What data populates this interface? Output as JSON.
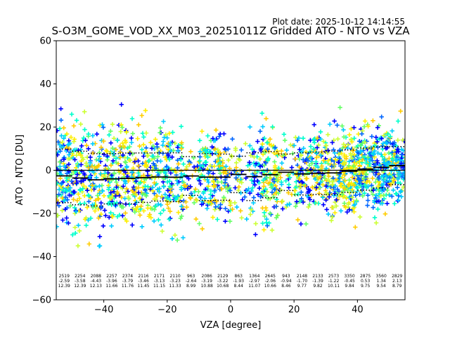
{
  "chart_data": {
    "type": "scatter",
    "title": "S-O3M_GOME_VOD_XX_M03_20251011Z Gridded ATO - NTO vs VZA",
    "plot_date": "Plot date: 2025-10-12 14:14:55",
    "xlabel": "VZA [degree]",
    "ylabel": "ATO - NTO [DU]",
    "xlim": [
      -55,
      55
    ],
    "ylim": [
      -60,
      60
    ],
    "xticks": [
      -40,
      -20,
      0,
      20,
      40
    ],
    "yticks": [
      -60,
      -40,
      -20,
      0,
      20,
      40,
      60
    ],
    "xtick_labels": [
      "−40",
      "−20",
      "0",
      "20",
      "40"
    ],
    "ytick_labels": [
      "−60",
      "−40",
      "−20",
      "0",
      "20",
      "40",
      "60"
    ],
    "grid": false,
    "zero_line": 0,
    "marker": "+",
    "marker_colors": [
      "#0000ff",
      "#0066ff",
      "#00ccff",
      "#00ffcc",
      "#66ff66",
      "#ccff33",
      "#ffcc00",
      "#ffee00"
    ],
    "bins": [
      {
        "vza": -52.5,
        "count": 2519,
        "mean": -2.59,
        "std": 12.39,
        "count_label": "2519",
        "mean_label": "-2.59",
        "std_label": "12.39"
      },
      {
        "vza": -47.5,
        "count": 2254,
        "mean": -3.58,
        "std": 12.39,
        "count_label": "2254",
        "mean_label": "-3.58",
        "std_label": "12.39"
      },
      {
        "vza": -42.5,
        "count": 2088,
        "mean": -4.43,
        "std": 12.13,
        "count_label": "2088",
        "mean_label": "-4.43",
        "std_label": "12.13"
      },
      {
        "vza": -37.5,
        "count": 2257,
        "mean": -3.96,
        "std": 11.66,
        "count_label": "2257",
        "mean_label": "-3.96",
        "std_label": "11.66"
      },
      {
        "vza": -32.5,
        "count": 2374,
        "mean": -3.79,
        "std": 11.76,
        "count_label": "2374",
        "mean_label": "-3.79",
        "std_label": "11.76"
      },
      {
        "vza": -27.5,
        "count": 2116,
        "mean": -3.46,
        "std": 11.45,
        "count_label": "2116",
        "mean_label": "-3.46",
        "std_label": "11.45"
      },
      {
        "vza": -22.5,
        "count": 2171,
        "mean": -3.13,
        "std": 11.15,
        "count_label": "2171",
        "mean_label": "-3.13",
        "std_label": "11.15"
      },
      {
        "vza": -17.5,
        "count": 2110,
        "mean": -3.23,
        "std": 11.33,
        "count_label": "2110",
        "mean_label": "-3.23",
        "std_label": "11.33"
      },
      {
        "vza": -12.5,
        "count": 963,
        "mean": -2.64,
        "std": 8.99,
        "count_label": "963",
        "mean_label": "-2.64",
        "std_label": "8.99"
      },
      {
        "vza": -7.5,
        "count": 2086,
        "mean": -3.19,
        "std": 10.88,
        "count_label": "2086",
        "mean_label": "-3.19",
        "std_label": "10.88"
      },
      {
        "vza": -2.5,
        "count": 2129,
        "mean": -3.22,
        "std": 10.68,
        "count_label": "2129",
        "mean_label": "-3.22",
        "std_label": "10.68"
      },
      {
        "vza": 2.5,
        "count": 863,
        "mean": -1.93,
        "std": 8.44,
        "count_label": "863",
        "mean_label": "-1.93",
        "std_label": "8.44"
      },
      {
        "vza": 7.5,
        "count": 1364,
        "mean": -2.97,
        "std": 11.07,
        "count_label": "1364",
        "mean_label": "-2.97",
        "std_label": "11.07"
      },
      {
        "vza": 12.5,
        "count": 2645,
        "mean": -2.06,
        "std": 10.66,
        "count_label": "2645",
        "mean_label": "-2.06",
        "std_label": "10.66"
      },
      {
        "vza": 17.5,
        "count": 943,
        "mean": -0.94,
        "std": 8.46,
        "count_label": "943",
        "mean_label": "-0.94",
        "std_label": "8.46"
      },
      {
        "vza": 22.5,
        "count": 2148,
        "mean": -1.7,
        "std": 9.77,
        "count_label": "2148",
        "mean_label": "-1.70",
        "std_label": "9.77"
      },
      {
        "vza": 27.5,
        "count": 2133,
        "mean": -1.39,
        "std": 9.82,
        "count_label": "2133",
        "mean_label": "-1.39",
        "std_label": "9.82"
      },
      {
        "vza": 32.5,
        "count": 2573,
        "mean": -1.22,
        "std": 10.11,
        "count_label": "2573",
        "mean_label": "-1.22",
        "std_label": "10.11"
      },
      {
        "vza": 37.5,
        "count": 3350,
        "mean": -0.45,
        "std": 9.84,
        "count_label": "3350",
        "mean_label": "-0.45",
        "std_label": "9.84"
      },
      {
        "vza": 42.5,
        "count": 2875,
        "mean": 0.53,
        "std": 9.75,
        "count_label": "2875",
        "mean_label": "0.53",
        "std_label": "9.75"
      },
      {
        "vza": 47.5,
        "count": 3560,
        "mean": 1.34,
        "std": 9.54,
        "count_label": "3560",
        "mean_label": "1.34",
        "std_label": "9.54"
      },
      {
        "vza": 52.5,
        "count": 2829,
        "mean": 2.13,
        "std": 8.79,
        "count_label": "2829",
        "mean_label": "2.13",
        "std_label": "8.79"
      }
    ]
  }
}
